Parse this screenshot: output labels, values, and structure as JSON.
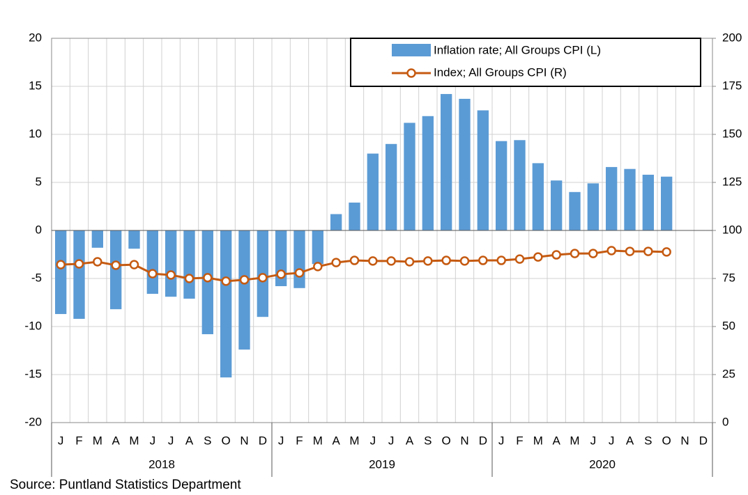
{
  "chart_data": {
    "type": "bar",
    "categories": [
      "J",
      "F",
      "M",
      "A",
      "M",
      "J",
      "J",
      "A",
      "S",
      "O",
      "N",
      "D",
      "J",
      "F",
      "M",
      "A",
      "M",
      "J",
      "J",
      "A",
      "S",
      "O",
      "N",
      "D",
      "J",
      "F",
      "M",
      "A",
      "M",
      "J",
      "J",
      "A",
      "S",
      "O",
      "N",
      "D"
    ],
    "years": [
      "2018",
      "2019",
      "2020"
    ],
    "series": [
      {
        "name": "Inflation rate; All Groups CPI (L)",
        "type": "bar",
        "color": "#5b9bd5",
        "values": [
          -8.7,
          -9.2,
          -1.8,
          -8.2,
          -1.9,
          -6.6,
          -6.9,
          -7.1,
          -10.8,
          -15.3,
          -12.4,
          -9.0,
          -5.8,
          -6.0,
          -3.5,
          1.7,
          2.9,
          8.0,
          9.0,
          11.2,
          11.9,
          14.2,
          13.7,
          12.5,
          9.3,
          9.4,
          7.0,
          5.2,
          4.0,
          4.9,
          6.6,
          6.4,
          5.8,
          5.6,
          null,
          null
        ]
      },
      {
        "name": "Index; All Groups CPI (R)",
        "type": "line",
        "axis": "y2",
        "color": "#c55a11",
        "values": [
          82.2,
          82.6,
          83.7,
          81.9,
          82.2,
          77.5,
          76.8,
          75.0,
          75.4,
          73.6,
          74.3,
          75.4,
          77.2,
          77.9,
          81.2,
          83.3,
          84.4,
          84.1,
          84.1,
          83.7,
          84.1,
          84.4,
          84.1,
          84.4,
          84.4,
          85.1,
          86.2,
          87.3,
          88.0,
          88.0,
          89.5,
          89.1,
          89.1,
          88.8,
          null,
          null
        ]
      }
    ],
    "ylim": [
      -20,
      20
    ],
    "yticks": [
      -20,
      -15,
      -10,
      -5,
      0,
      5,
      10,
      15,
      20
    ],
    "y2lim": [
      0,
      200
    ],
    "y2ticks": [
      0,
      25,
      50,
      75,
      100,
      125,
      150,
      175,
      200
    ],
    "grid": true,
    "legend": "top-right",
    "source": "Source: Puntland Statistics Department"
  }
}
